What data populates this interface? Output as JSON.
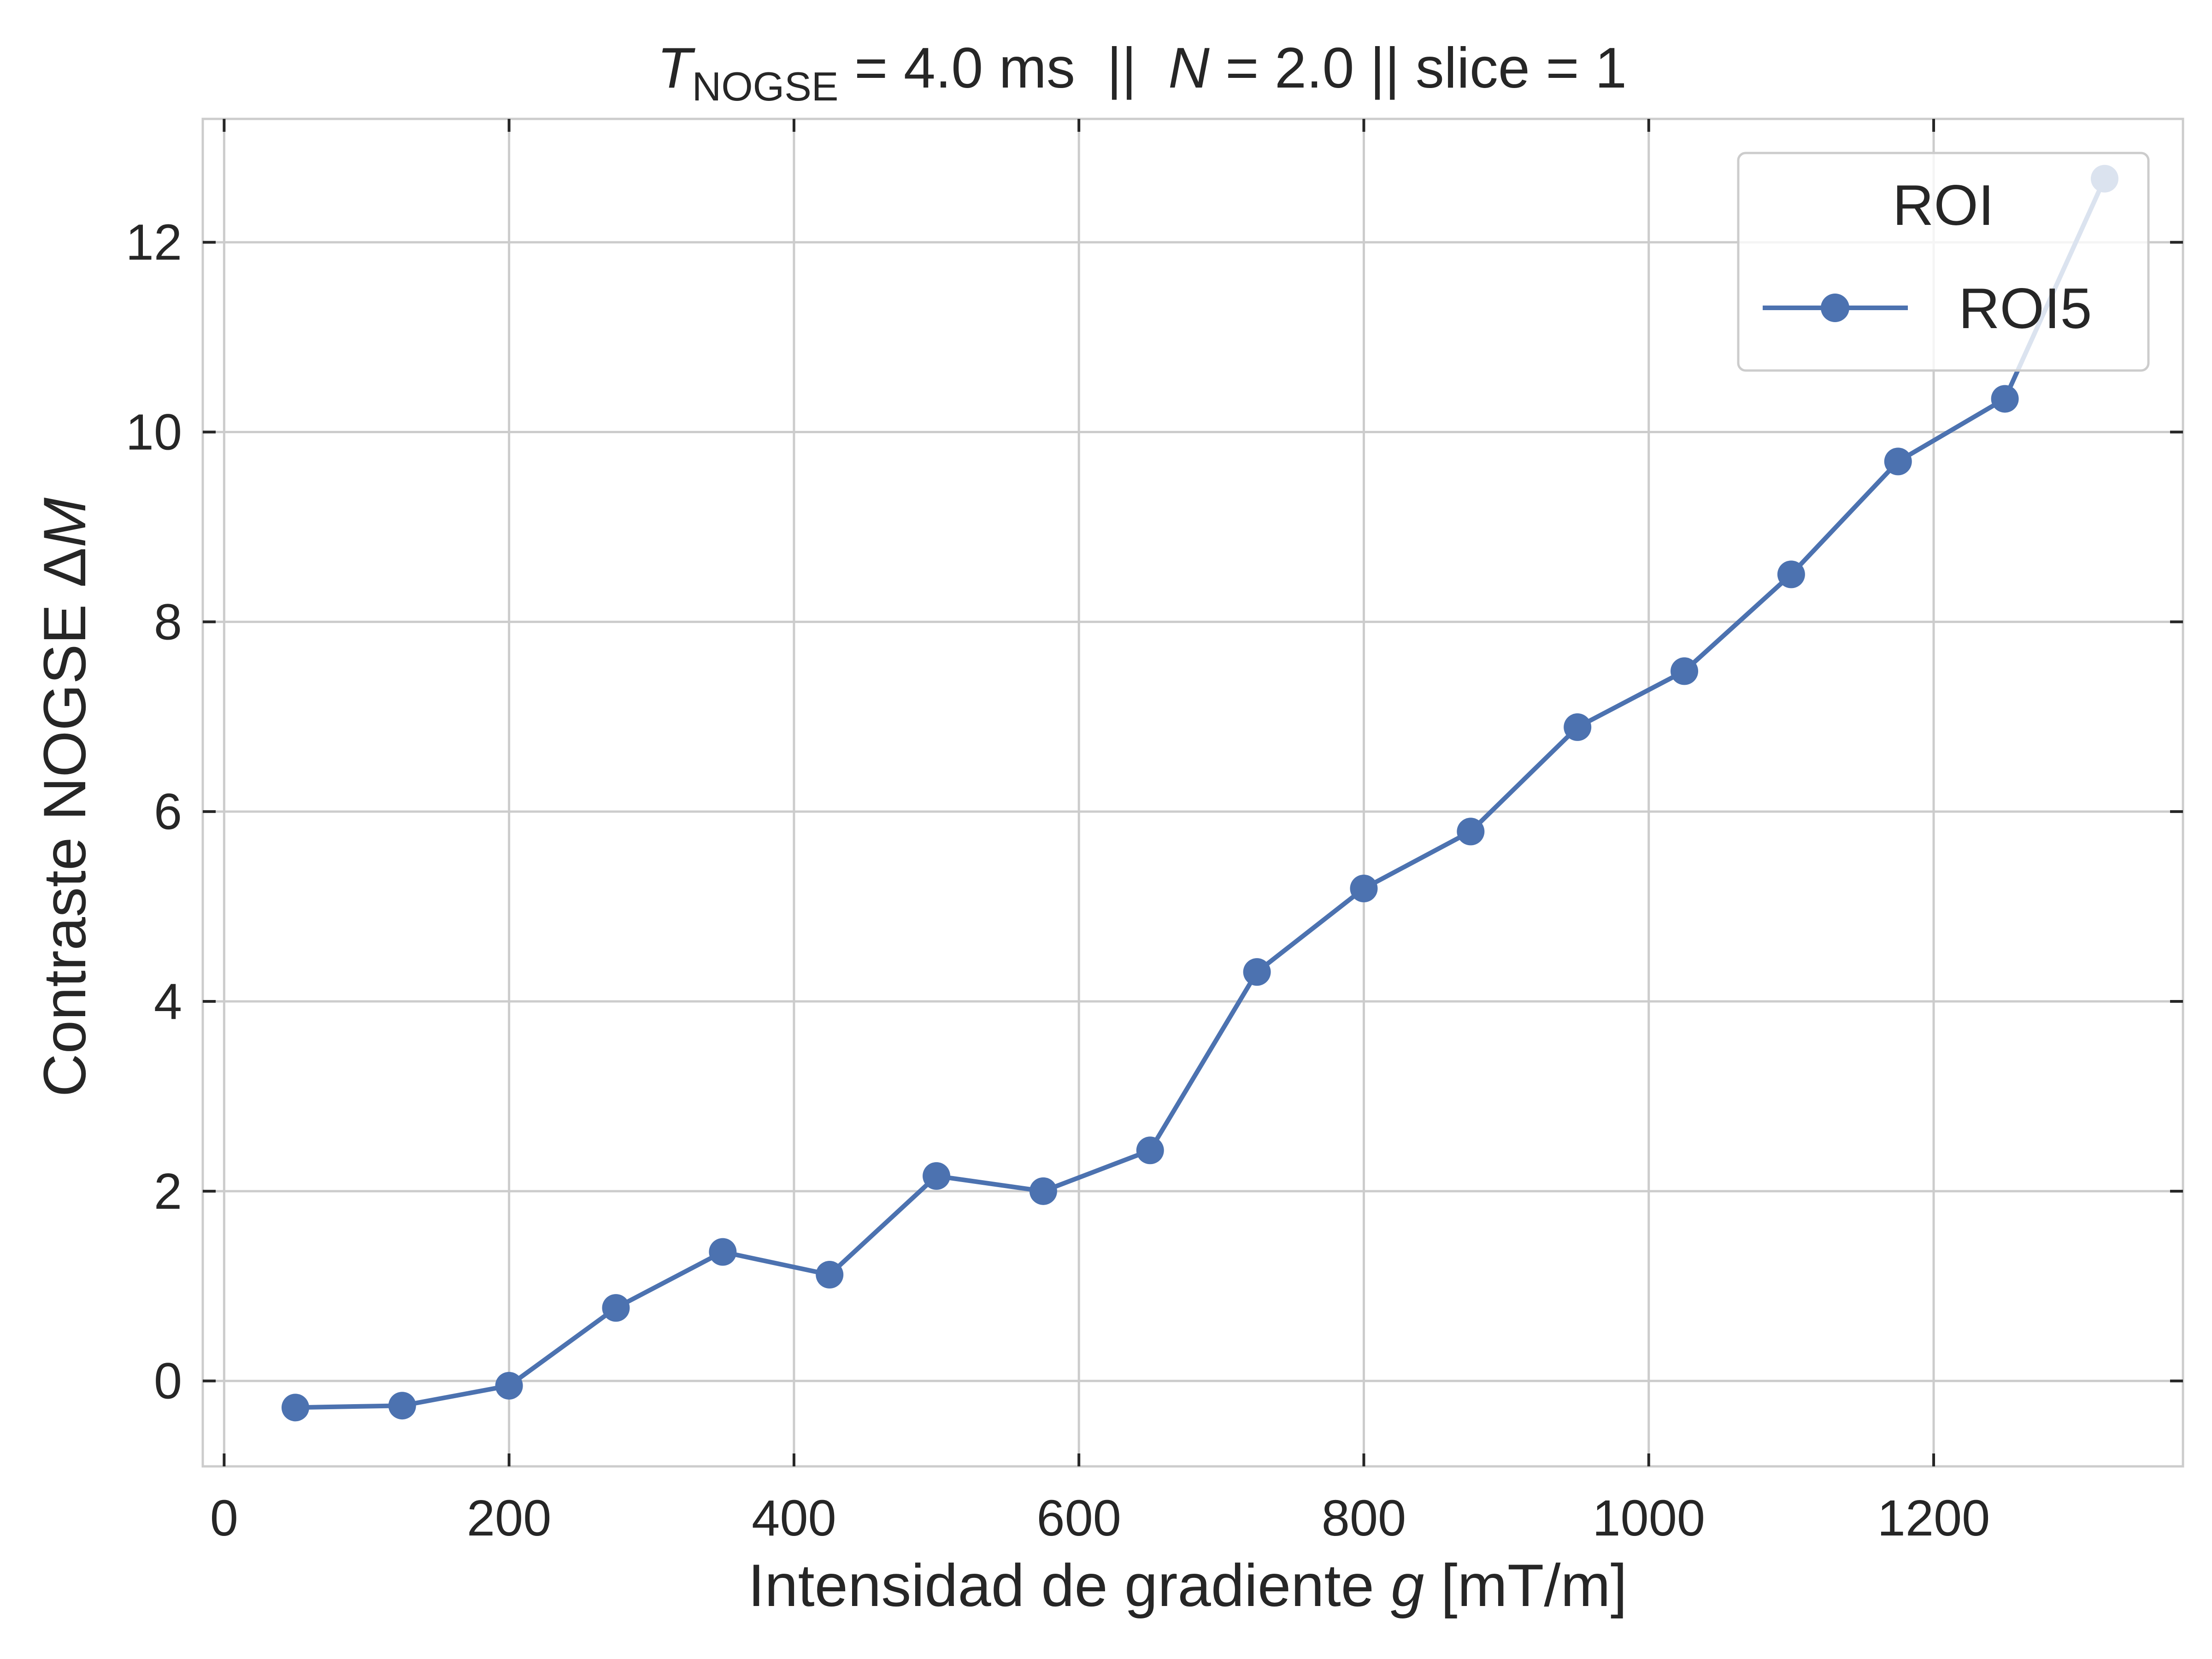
{
  "chart_data": {
    "type": "line",
    "title": {
      "t_symbol": "T",
      "t_subscript": "NOGSE",
      "t_value": " = 4.0 ms  ||  ",
      "n_symbol": "N",
      "n_value": " = 2.0 || slice = 1"
    },
    "xlabel": {
      "prefix": "Intensidad de gradiente ",
      "symbol": "g",
      "suffix": " [mT/m]"
    },
    "ylabel": {
      "prefix": "Contraste NOGSE Δ",
      "symbol": "M"
    },
    "xlim": [
      -15,
      1375
    ],
    "ylim": [
      -0.9,
      13.3
    ],
    "xticks": [
      0,
      200,
      400,
      600,
      800,
      1000,
      1200
    ],
    "yticks": [
      0,
      2,
      4,
      6,
      8,
      10,
      12
    ],
    "grid": true,
    "legend": {
      "title": "ROI",
      "position": "top-right"
    },
    "series": [
      {
        "name": "ROI5",
        "color": "#4c72b0",
        "marker": "circle",
        "x": [
          50,
          125,
          200,
          275,
          350,
          425,
          500,
          575,
          650,
          725,
          800,
          875,
          950,
          1025,
          1100,
          1175,
          1250,
          1320
        ],
        "y": [
          -0.28,
          -0.26,
          -0.05,
          0.77,
          1.36,
          1.12,
          2.16,
          2.0,
          2.43,
          4.31,
          5.19,
          5.79,
          6.89,
          7.48,
          8.5,
          9.69,
          10.35,
          12.67
        ]
      }
    ],
    "colors": {
      "grid": "#cccccc",
      "frame": "#cccccc",
      "tick": "#262626",
      "text": "#262626"
    }
  }
}
